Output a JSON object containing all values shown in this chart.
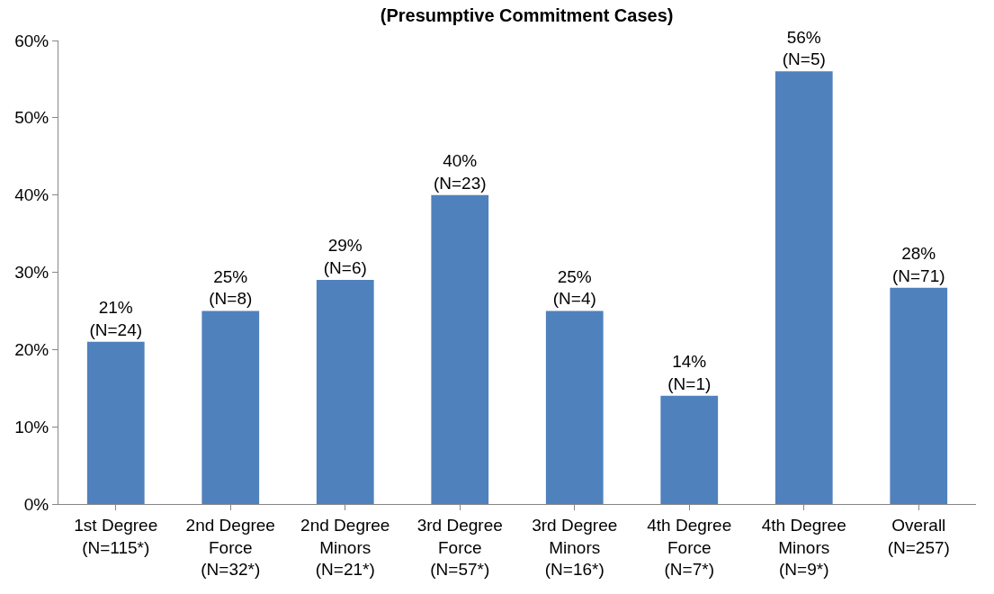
{
  "chart_data": {
    "type": "bar",
    "title": "(Presumptive Commitment Cases)",
    "categories": [
      "1st Degree\n(N=115*)",
      "2nd Degree\nForce\n(N=32*)",
      "2nd Degree\nMinors\n(N=21*)",
      "3rd Degree\nForce\n(N=57*)",
      "3rd Degree\nMinors\n(N=16*)",
      "4th Degree\nForce\n(N=7*)",
      "4th Degree\nMinors\n(N=9*)",
      "Overall\n(N=257)"
    ],
    "values": [
      21,
      25,
      29,
      40,
      25,
      14,
      56,
      28
    ],
    "value_labels": [
      "21%\n(N=24)",
      "25%\n(N=8)",
      "29%\n(N=6)",
      "40%\n(N=23)",
      "25%\n(N=4)",
      "14%\n(N=1)",
      "56%\n(N=5)",
      "28%\n(N=71)"
    ],
    "color": "#4f81bd",
    "ylim": [
      0,
      60
    ],
    "yticks": [
      {
        "value": 0,
        "label": "0%"
      },
      {
        "value": 10,
        "label": "10%"
      },
      {
        "value": 20,
        "label": "20%"
      },
      {
        "value": 30,
        "label": "30%"
      },
      {
        "value": 40,
        "label": "40%"
      },
      {
        "value": 50,
        "label": "50%"
      },
      {
        "value": 60,
        "label": "60%"
      }
    ],
    "grid": false
  }
}
